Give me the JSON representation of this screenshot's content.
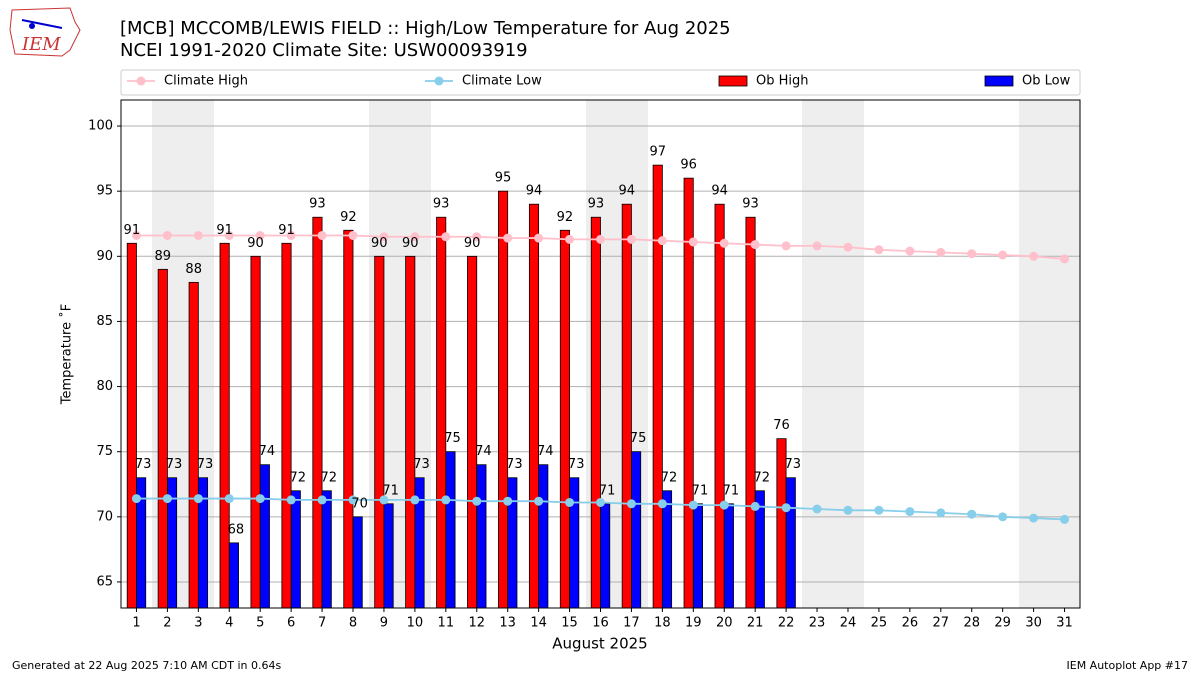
{
  "chart_data": {
    "type": "bar",
    "title": "[MCB] MCCOMB/LEWIS FIELD :: High/Low Temperature for Aug 2025",
    "subtitle": "NCEI 1991-2020 Climate Site: USW00093919",
    "logo_text": "IEM",
    "ylabel": "Temperature ˚F",
    "xlabel": "August 2025",
    "footer_left": "Generated at 22 Aug 2025 7:10 AM CDT in 0.64s",
    "footer_right": "IEM Autoplot App #17",
    "x": [
      1,
      2,
      3,
      4,
      5,
      6,
      7,
      8,
      9,
      10,
      11,
      12,
      13,
      14,
      15,
      16,
      17,
      18,
      19,
      20,
      21,
      22,
      23,
      24,
      25,
      26,
      27,
      28,
      29,
      30,
      31
    ],
    "xlim": [
      0.5,
      31.5
    ],
    "xticks": [
      1,
      2,
      3,
      4,
      5,
      6,
      7,
      8,
      9,
      10,
      11,
      12,
      13,
      14,
      15,
      16,
      17,
      18,
      19,
      20,
      21,
      22,
      23,
      24,
      25,
      26,
      27,
      28,
      29,
      30,
      31
    ],
    "ylim": [
      63,
      102
    ],
    "yticks": [
      65,
      70,
      75,
      80,
      85,
      90,
      95,
      100
    ],
    "grid": true,
    "series": [
      {
        "name": "Climate High",
        "kind": "line",
        "color": "#ffc0cb",
        "values": [
          91.6,
          91.6,
          91.6,
          91.6,
          91.6,
          91.6,
          91.6,
          91.6,
          91.5,
          91.5,
          91.5,
          91.5,
          91.4,
          91.4,
          91.3,
          91.3,
          91.3,
          91.2,
          91.1,
          91.0,
          90.9,
          90.8,
          90.8,
          90.7,
          90.5,
          90.4,
          90.3,
          90.2,
          90.1,
          90.0,
          89.8
        ]
      },
      {
        "name": "Climate Low",
        "kind": "line",
        "color": "#87ceeb",
        "values": [
          71.4,
          71.4,
          71.4,
          71.4,
          71.4,
          71.3,
          71.3,
          71.3,
          71.3,
          71.3,
          71.3,
          71.2,
          71.2,
          71.2,
          71.1,
          71.1,
          71.0,
          71.0,
          70.9,
          70.9,
          70.8,
          70.7,
          70.6,
          70.5,
          70.5,
          70.4,
          70.3,
          70.2,
          70.0,
          69.9,
          69.8
        ]
      },
      {
        "name": "Ob High",
        "kind": "bar",
        "color": "#ff0000",
        "values": [
          91,
          89,
          88,
          91,
          90,
          91,
          93,
          92,
          90,
          90,
          93,
          90,
          95,
          94,
          92,
          93,
          94,
          97,
          96,
          94,
          93,
          76,
          null,
          null,
          null,
          null,
          null,
          null,
          null,
          null,
          null
        ]
      },
      {
        "name": "Ob Low",
        "kind": "bar",
        "color": "#0000ff",
        "values": [
          73,
          73,
          73,
          68,
          74,
          72,
          72,
          70,
          71,
          73,
          75,
          74,
          73,
          74,
          73,
          71,
          75,
          72,
          71,
          71,
          72,
          73,
          null,
          null,
          null,
          null,
          null,
          null,
          null,
          null,
          null
        ]
      }
    ]
  }
}
